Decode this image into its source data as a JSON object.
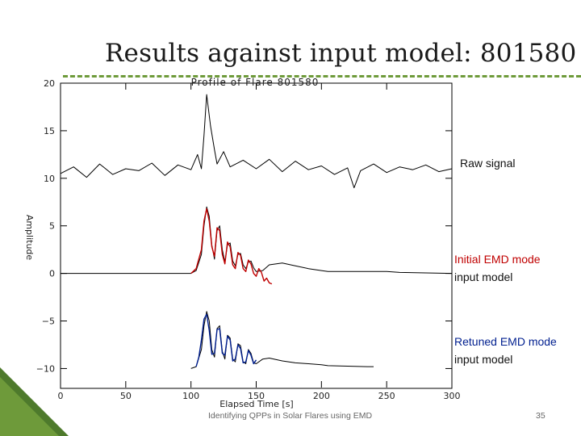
{
  "slide": {
    "title": "Results against input model: 801580",
    "footer": "Identifying QPPs in Solar Flares using EMD",
    "page_number": "35"
  },
  "annotations": {
    "raw": "Raw signal",
    "initial_line1": "Initial EMD mode",
    "initial_line2": "input model",
    "retuned_line1": "Retuned EMD mode",
    "retuned_line2": "input model"
  },
  "colors": {
    "accent_green": "#6e9a3a",
    "initial_mode": "#c00000",
    "retuned_mode": "#001f8f"
  },
  "chart_data": {
    "type": "line",
    "title": "Profile of Flare 801580",
    "xlabel": "Elapsed Time [s]",
    "ylabel": "Amplitude",
    "xlim": [
      0,
      300
    ],
    "ylim": [
      -12,
      20
    ],
    "xticks": [
      0,
      50,
      100,
      150,
      200,
      250,
      300
    ],
    "yticks": [
      -10,
      -5,
      0,
      5,
      10,
      15,
      20
    ],
    "grid": false,
    "series": [
      {
        "color": "#000000",
        "x": [
          0,
          10,
          20,
          30,
          40,
          50,
          60,
          70,
          80,
          90,
          100,
          105,
          108,
          110,
          112,
          115,
          118,
          120,
          125,
          130,
          140,
          150,
          160,
          170,
          180,
          190,
          200,
          210,
          220,
          225,
          230,
          240,
          250,
          260,
          270,
          280,
          290,
          300
        ],
        "y": [
          10.5,
          11.2,
          10.1,
          11.5,
          10.4,
          11.0,
          10.8,
          11.6,
          10.3,
          11.4,
          10.9,
          12.5,
          11.0,
          14.5,
          18.8,
          15.5,
          13.0,
          11.5,
          12.8,
          11.2,
          11.9,
          11.0,
          12.0,
          10.7,
          11.8,
          10.9,
          11.3,
          10.4,
          11.1,
          9.0,
          10.8,
          11.5,
          10.6,
          11.2,
          10.9,
          11.4,
          10.7,
          11.0
        ]
      },
      {
        "color": "#000000",
        "x": [
          0,
          100,
          104,
          108,
          110,
          112,
          114,
          116,
          118,
          120,
          122,
          124,
          126,
          128,
          130,
          132,
          134,
          136,
          138,
          140,
          142,
          144,
          146,
          148,
          150,
          155,
          160,
          170,
          180,
          190,
          200,
          205,
          250,
          260,
          300
        ],
        "y": [
          0,
          0,
          0.3,
          2.0,
          5.0,
          7.0,
          6.0,
          3.0,
          1.5,
          4.5,
          5.0,
          2.5,
          1.2,
          3.0,
          3.2,
          1.3,
          0.8,
          2.0,
          2.1,
          0.9,
          0.5,
          1.2,
          1.3,
          0.6,
          0.2,
          0.3,
          0.9,
          1.1,
          0.8,
          0.5,
          0.3,
          0.2,
          0.2,
          0.1,
          0.0
        ]
      },
      {
        "name": "Initial EMD mode",
        "color": "#c00000",
        "x": [
          100,
          104,
          108,
          110,
          112,
          114,
          116,
          118,
          120,
          122,
          124,
          126,
          128,
          130,
          132,
          134,
          136,
          138,
          140,
          142,
          144,
          146,
          148,
          150,
          152,
          154,
          156,
          158,
          160,
          162
        ],
        "y": [
          0,
          0.5,
          2.5,
          5.5,
          6.8,
          5.5,
          2.8,
          1.8,
          4.8,
          4.5,
          2.0,
          1.0,
          3.3,
          2.8,
          0.9,
          0.5,
          2.2,
          1.9,
          0.5,
          0.2,
          1.4,
          1.0,
          0.0,
          -0.3,
          0.5,
          0.1,
          -0.8,
          -0.5,
          -1.0,
          -1.1
        ]
      },
      {
        "color": "#000000",
        "x": [
          100,
          104,
          108,
          110,
          112,
          114,
          116,
          118,
          120,
          122,
          124,
          126,
          128,
          130,
          132,
          134,
          136,
          138,
          140,
          142,
          144,
          146,
          148,
          150,
          155,
          160,
          170,
          180,
          190,
          200,
          205,
          235,
          240
        ],
        "y": [
          -10,
          -9.8,
          -8.0,
          -5.5,
          -4.0,
          -5.0,
          -8.0,
          -8.8,
          -5.8,
          -5.5,
          -8.2,
          -9.0,
          -6.5,
          -6.8,
          -9.0,
          -9.3,
          -7.4,
          -7.6,
          -9.3,
          -9.5,
          -8.0,
          -8.4,
          -9.4,
          -9.5,
          -9.0,
          -8.9,
          -9.2,
          -9.4,
          -9.5,
          -9.6,
          -9.7,
          -9.8,
          -9.8
        ]
      },
      {
        "name": "Retuned EMD mode",
        "color": "#001f8f",
        "x": [
          104,
          106,
          108,
          110,
          112,
          114,
          116,
          118,
          120,
          122,
          124,
          126,
          128,
          130,
          132,
          134,
          136,
          138,
          140,
          142,
          144,
          146,
          148,
          150
        ],
        "y": [
          -9.8,
          -8.8,
          -7.0,
          -4.8,
          -4.3,
          -6.0,
          -8.5,
          -8.4,
          -5.9,
          -5.8,
          -8.4,
          -8.6,
          -6.6,
          -7.0,
          -9.2,
          -9.0,
          -7.5,
          -7.9,
          -9.4,
          -9.3,
          -8.1,
          -8.6,
          -9.5,
          -9.1
        ]
      }
    ]
  }
}
